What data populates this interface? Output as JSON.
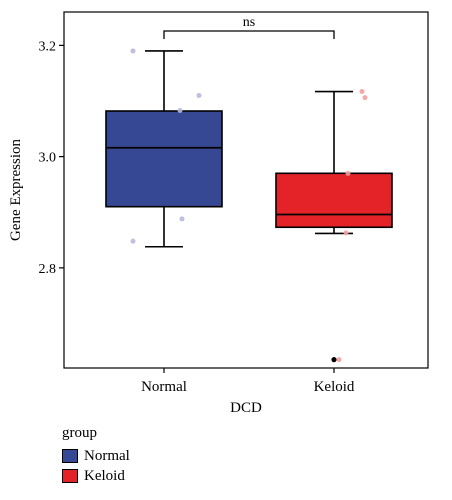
{
  "chart_data": {
    "type": "box",
    "xlabel": "DCD",
    "ylabel": "Gene Expression",
    "ylim": [
      2.62,
      3.26
    ],
    "yticks": [
      2.8,
      3.0,
      3.2
    ],
    "ytick_labels": [
      "2.8",
      "3.0",
      "3.2"
    ],
    "categories": [
      "Normal",
      "Keloid"
    ],
    "series": [
      {
        "name": "Normal",
        "color": "#364893",
        "jitter_color": "#b8b8de",
        "min": 2.838,
        "q1": 2.91,
        "median": 3.016,
        "q3": 3.082,
        "max": 3.19,
        "points": [
          3.19,
          3.11,
          3.083,
          2.888,
          2.848
        ],
        "outliers": []
      },
      {
        "name": "Keloid",
        "color": "#e42328",
        "jitter_color": "#f4a0a0",
        "min": 2.862,
        "q1": 2.873,
        "median": 2.896,
        "q3": 2.97,
        "max": 3.117,
        "points": [
          3.117,
          3.106,
          2.97,
          2.863,
          2.635
        ],
        "outliers": [
          2.635
        ]
      }
    ],
    "annotation": "ns",
    "legend": {
      "title": "group",
      "position": "bottom-left",
      "entries": [
        "Normal",
        "Keloid"
      ]
    }
  }
}
